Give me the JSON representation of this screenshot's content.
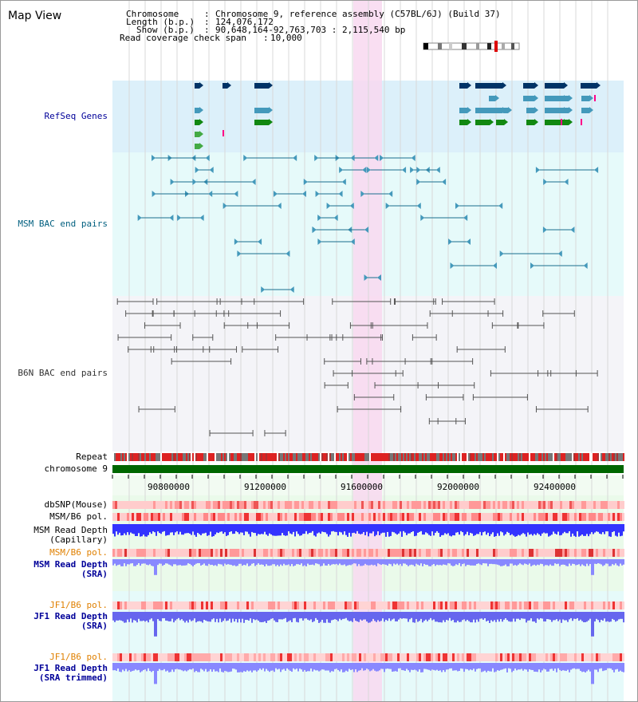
{
  "title": "Map View",
  "info": {
    "chromosome_label": "Chromosome",
    "chromosome_value": "Chromosome 9, reference assembly (C57BL/6J) (Build 37)",
    "length_label": "Length (b.p.)",
    "length_value": "124,076,172",
    "show_label": "Show (b.p.)",
    "show_value": "90,648,164-92,763,703 : 2,115,540 bp",
    "coverage_label": "Read coverage check span",
    "coverage_value": "10,000"
  },
  "tracks": {
    "refseq": "RefSeq Genes",
    "msm_bac": "MSM BAC end pairs",
    "b6n_bac": "B6N BAC end pairs",
    "repeat": "Repeat",
    "chromosome": "chromosome 9",
    "dbsnp": "dbSNP(Mouse)",
    "msm_b6_pol_1": "MSM/B6 pol.",
    "msm_read_depth_cap_1": "MSM Read Depth",
    "msm_read_depth_cap_2": "(Capillary)",
    "msm_b6_pol_2": "MSM/B6 pol.",
    "msm_read_depth_sra_1": "MSM Read Depth",
    "msm_read_depth_sra_2": "(SRA)",
    "jf1_b6_pol_1": "JF1/B6 pol.",
    "jf1_read_depth_1": "JF1 Read Depth",
    "jf1_read_depth_2": "(SRA)",
    "jf1_b6_pol_2": "JF1/B6 pol.",
    "jf1_trimmed_1": "JF1 Read Depth",
    "jf1_trimmed_2": "(SRA trimmed)"
  },
  "axis": {
    "ticks": [
      "90800000",
      "91200000",
      "91600000",
      "92000000",
      "92400000"
    ]
  },
  "colors": {
    "refseq_bg": "#dcf0fa",
    "msm_bg": "#e6fafa",
    "b6n_bg": "#f4f4f8",
    "highlight": "#f8d8f0",
    "chrom_green": "#006600",
    "label_blue": "#000099",
    "label_teal": "#005f7f",
    "label_orange": "#e08000",
    "depth_blue": "#3333ff",
    "depth_light": "#8888ff"
  }
}
